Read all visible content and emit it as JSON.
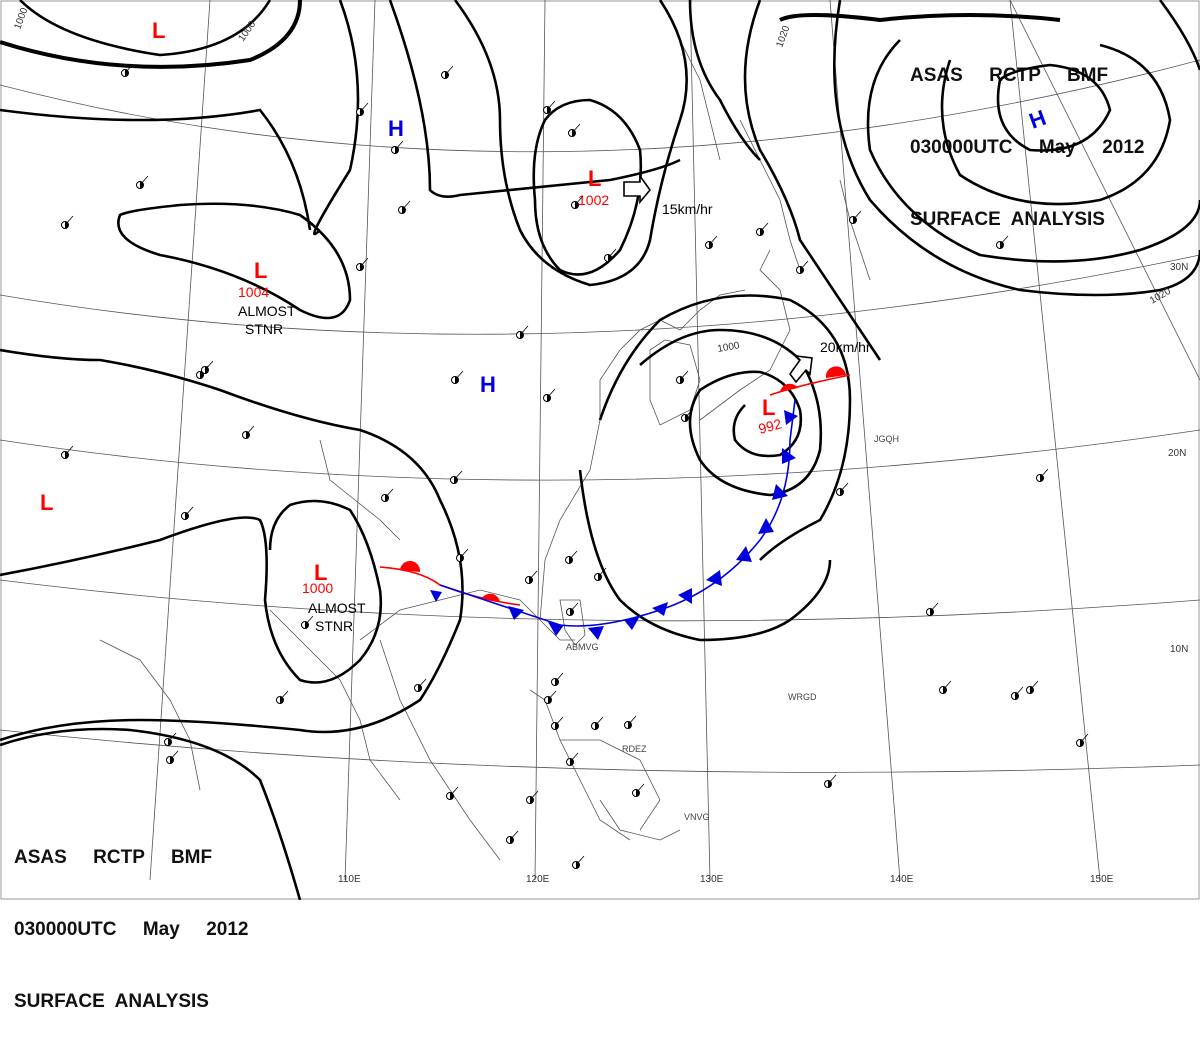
{
  "header_top": {
    "line1": "ASAS     RCTP     BMF",
    "line2": "030000UTC     May     2012",
    "line3": "SURFACE  ANALYSIS"
  },
  "header_bottom": {
    "line1": "ASAS     RCTP     BMF",
    "line2": "030000UTC     May     2012",
    "line3": "SURFACE  ANALYSIS"
  },
  "colors": {
    "low": "#ff0000",
    "high": "#0000dd",
    "isobar": "#000000",
    "warm_front": "#ff0000",
    "cold_front": "#0000dd",
    "coast": "#555555"
  },
  "longitude_labels": [
    "110E",
    "120E",
    "130E",
    "140E",
    "150E"
  ],
  "latitude_labels": [
    "30N",
    "20N",
    "10N"
  ],
  "pressure_systems": [
    {
      "id": "low-nw",
      "type": "L",
      "pressure": ""
    },
    {
      "id": "low-central-north",
      "type": "L",
      "pressure": "1002"
    },
    {
      "id": "low-west",
      "type": "L",
      "pressure": "1004",
      "note": "ALMOST\nSTNR"
    },
    {
      "id": "low-far-west",
      "type": "L",
      "pressure": ""
    },
    {
      "id": "low-south-china",
      "type": "L",
      "pressure": "1000",
      "note": "ALMOST\nSTNR"
    },
    {
      "id": "low-japan",
      "type": "L",
      "pressure": "992"
    },
    {
      "id": "high-mongolia",
      "type": "H",
      "pressure": ""
    },
    {
      "id": "high-china",
      "type": "H",
      "pressure": ""
    },
    {
      "id": "high-pacific",
      "type": "H",
      "pressure": ""
    }
  ],
  "isobar_labels": [
    "1000",
    "1000",
    "1020",
    "1020",
    "1000"
  ],
  "motion_vectors": [
    "15km/hr",
    "20km/hr"
  ],
  "station_ids": [
    "ABMVG",
    "JGQH",
    "WRGD",
    "VNVG",
    "RDEZ"
  ]
}
